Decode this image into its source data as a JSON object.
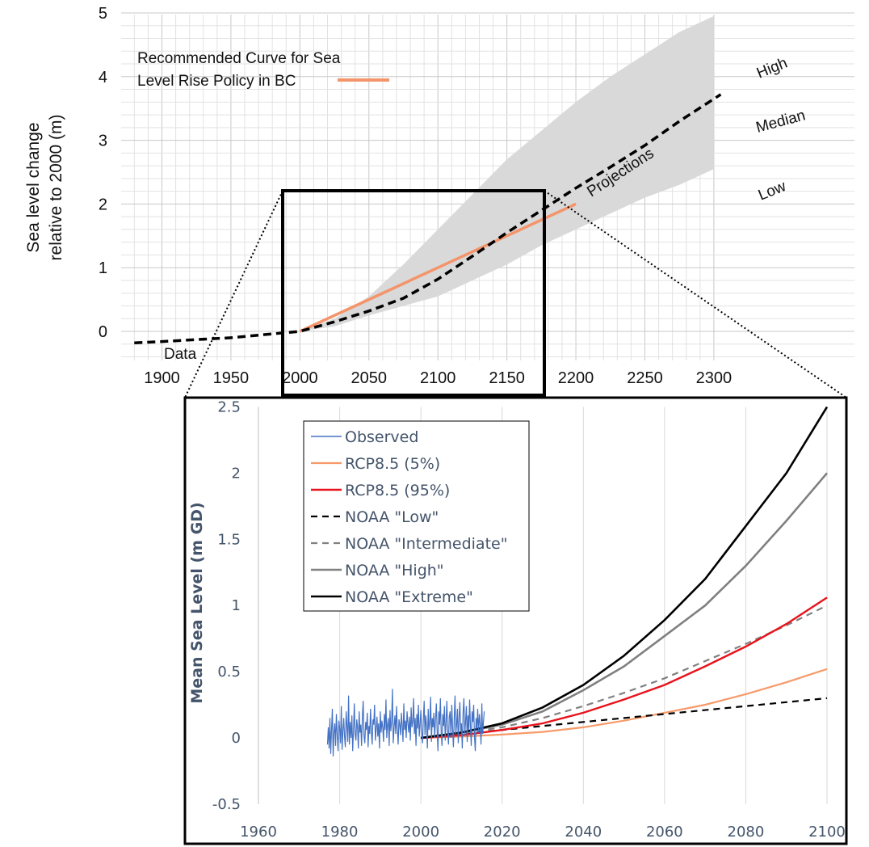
{
  "colors": {
    "recommended_curve": "#f4946b",
    "projection_band": "#d9d9d9",
    "observed": "#4472c4",
    "rcp85_5": "#f79a6a",
    "rcp85_95": "#e8121b",
    "noaa_low": "#000000",
    "noaa_intermediate": "#808080",
    "noaa_high": "#808080",
    "noaa_extreme": "#000000",
    "bottom_axis_text": "#44546a"
  },
  "chart_data": [
    {
      "type": "line",
      "title": "",
      "xlabel": "",
      "ylabel_lines": [
        "Sea level change",
        "relative to 2000 (m)"
      ],
      "xlim": [
        1880,
        2305
      ],
      "ylim": [
        -0.5,
        5
      ],
      "x_ticks": [
        1900,
        1950,
        2000,
        2050,
        2100,
        2150,
        2200,
        2250,
        2300
      ],
      "y_ticks": [
        0,
        1,
        2,
        3,
        4,
        5
      ],
      "grid": true,
      "legend_position": "top-left",
      "legend_lines": [
        "Recommended Curve for Sea",
        "Level Rise Policy in BC"
      ],
      "annotations": {
        "data": "Data",
        "projections": "Projections",
        "high": "High",
        "median": "Median",
        "low": "Low"
      },
      "band": {
        "x": [
          2000,
          2025,
          2050,
          2075,
          2100,
          2125,
          2150,
          2175,
          2200,
          2225,
          2250,
          2275,
          2300
        ],
        "upper": [
          0.0,
          0.2,
          0.55,
          1.05,
          1.6,
          2.15,
          2.7,
          3.15,
          3.6,
          4.0,
          4.35,
          4.7,
          4.95
        ],
        "lower": [
          0.0,
          0.08,
          0.25,
          0.4,
          0.55,
          0.8,
          1.05,
          1.35,
          1.6,
          1.85,
          2.1,
          2.3,
          2.55
        ]
      },
      "series": [
        {
          "name": "Recommended Curve for Sea Level Rise Policy in BC",
          "style": "solid",
          "x": [
            2000,
            2050,
            2100,
            2150,
            2200
          ],
          "y": [
            0.0,
            0.5,
            1.0,
            1.5,
            2.0
          ]
        },
        {
          "style": "dashed",
          "x": [
            1880,
            1900,
            1925,
            1950,
            1975,
            2000,
            2025,
            2050,
            2075,
            2100,
            2125,
            2150,
            2175,
            2200,
            2225,
            2250,
            2275,
            2305
          ],
          "y": [
            -0.18,
            -0.16,
            -0.13,
            -0.1,
            -0.05,
            0.0,
            0.15,
            0.32,
            0.52,
            0.82,
            1.18,
            1.55,
            1.9,
            2.25,
            2.58,
            2.92,
            3.3,
            3.72
          ]
        }
      ],
      "zoom_box_x": [
        1975,
        2125
      ],
      "zoom_box_y": [
        -0.45,
        2.25
      ]
    },
    {
      "type": "line",
      "title": "",
      "xlabel": "",
      "ylabel": "Mean Sea Level (m GD)",
      "xlim": [
        1960,
        2100
      ],
      "ylim": [
        -0.5,
        2.5
      ],
      "x_ticks": [
        1960,
        1980,
        2000,
        2020,
        2040,
        2060,
        2080,
        2100
      ],
      "y_ticks": [
        "2.5",
        "2",
        "1.5",
        "1",
        "0.5",
        "0",
        "-0.5"
      ],
      "grid": true,
      "legend_position": "top-left",
      "series": [
        {
          "name": "Observed",
          "style": "solid",
          "x_start": 1977,
          "x_step": 0.2,
          "y": [
            -0.05,
            0.08,
            -0.08,
            0.15,
            -0.12,
            0.06,
            0.22,
            -0.14,
            0.04,
            0.11,
            -0.06,
            0.18,
            0.02,
            -0.1,
            0.13,
            0.07,
            -0.04,
            0.24,
            -0.09,
            0.05,
            0.15,
            0.01,
            -0.07,
            0.2,
            0.09,
            -0.03,
            0.32,
            -0.05,
            0.12,
            0.0,
            0.17,
            -0.1,
            0.06,
            0.26,
            0.03,
            -0.02,
            0.14,
            0.08,
            -0.08,
            0.2,
            0.04,
            0.1,
            -0.06,
            0.16,
            0.28,
            0.02,
            -0.04,
            0.12,
            0.06,
            0.19,
            -0.07,
            0.09,
            0.03,
            0.22,
            0.05,
            -0.05,
            0.14,
            0.1,
            0.25,
            -0.02,
            0.07,
            0.16,
            0.01,
            0.11,
            -0.08,
            0.2,
            0.04,
            0.13,
            0.08,
            -0.03,
            0.18,
            0.06,
            0.29,
            0.0,
            0.1,
            0.15,
            -0.06,
            0.21,
            0.05,
            0.12,
            0.37,
            -0.04,
            0.08,
            0.17,
            0.03,
            0.24,
            0.07,
            -0.05,
            0.14,
            0.1,
            0.02,
            0.19,
            0.09,
            -0.03,
            0.26,
            0.06,
            0.13,
            0.0,
            0.2,
            0.11,
            0.04,
            0.16,
            -0.02,
            0.23,
            0.08,
            0.12,
            0.3,
            0.03,
            0.15,
            -0.06,
            0.18,
            0.07,
            0.25,
            0.01,
            0.1,
            0.21,
            0.05,
            -0.04,
            0.14,
            0.28,
            0.02,
            0.17,
            0.09,
            -0.08,
            0.22,
            0.06,
            0.12,
            0.31,
            -0.03,
            0.15,
            0.08,
            0.19,
            0.0,
            0.13,
            0.26,
            0.05,
            -0.1,
            0.2,
            0.1,
            0.3,
            0.04,
            -0.06,
            0.18,
            0.09,
            0.24,
            -0.02,
            0.12,
            0.28,
            0.06,
            -0.05,
            0.16,
            0.2,
            0.0,
            0.25,
            0.08,
            -0.07,
            0.14,
            0.32,
            0.03,
            0.1,
            0.22,
            -0.04,
            0.15,
            0.27,
            0.05,
            0.11,
            -0.08,
            0.19,
            0.3,
            0.02,
            0.13,
            0.24,
            -0.03,
            0.17,
            0.06,
            0.29,
            0.09,
            -0.06,
            0.2,
            0.12,
            0.25,
            0.01,
            -0.1,
            0.15,
            0.07,
            0.22,
            0.04,
            0.18,
            0.1,
            -0.05,
            0.26,
            0.03,
            0.12,
            0.2
          ]
        },
        {
          "name": "RCP8.5 (5%)",
          "style": "solid",
          "x": [
            2000,
            2010,
            2020,
            2030,
            2040,
            2050,
            2060,
            2070,
            2080,
            2090,
            2100
          ],
          "y": [
            0.0,
            0.01,
            0.025,
            0.045,
            0.08,
            0.13,
            0.19,
            0.25,
            0.33,
            0.42,
            0.52
          ]
        },
        {
          "name": "RCP8.5 (95%)",
          "style": "solid",
          "x": [
            2000,
            2010,
            2020,
            2030,
            2040,
            2050,
            2060,
            2070,
            2080,
            2090,
            2100
          ],
          "y": [
            0.0,
            0.02,
            0.06,
            0.11,
            0.19,
            0.29,
            0.4,
            0.54,
            0.69,
            0.86,
            1.06
          ]
        },
        {
          "name": "NOAA \"Low\"",
          "style": "dashed",
          "x": [
            2000,
            2020,
            2040,
            2060,
            2080,
            2100
          ],
          "y": [
            0.0,
            0.06,
            0.12,
            0.18,
            0.24,
            0.3
          ]
        },
        {
          "name": "NOAA \"Intermediate\"",
          "style": "dashed",
          "x": [
            2000,
            2010,
            2020,
            2030,
            2040,
            2050,
            2060,
            2070,
            2080,
            2090,
            2100
          ],
          "y": [
            0.0,
            0.035,
            0.08,
            0.15,
            0.24,
            0.34,
            0.45,
            0.58,
            0.71,
            0.85,
            1.0
          ]
        },
        {
          "name": "NOAA \"High\"",
          "style": "solid",
          "x": [
            2000,
            2010,
            2020,
            2030,
            2040,
            2050,
            2060,
            2070,
            2080,
            2090,
            2100
          ],
          "y": [
            0.0,
            0.04,
            0.1,
            0.2,
            0.36,
            0.54,
            0.77,
            1.0,
            1.3,
            1.64,
            2.0
          ]
        },
        {
          "name": "NOAA \"Extreme\"",
          "style": "solid",
          "x": [
            2000,
            2010,
            2020,
            2030,
            2040,
            2050,
            2060,
            2070,
            2080,
            2090,
            2100
          ],
          "y": [
            0.0,
            0.04,
            0.11,
            0.23,
            0.4,
            0.62,
            0.89,
            1.2,
            1.6,
            2.0,
            2.5
          ]
        }
      ]
    }
  ]
}
